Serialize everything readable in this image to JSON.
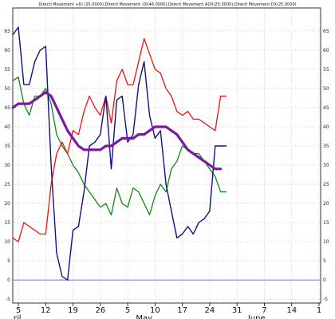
{
  "chart_data": {
    "type": "line",
    "title": "Directi Movement +Di (25.0000),Directi Movement -DI(46.0000),Directi Movement ADX(25.0000),Directi Movement DX(25.0000)",
    "xlabel": "",
    "ylabel": "",
    "ylim": [
      -6,
      71
    ],
    "yticks": [
      65,
      60,
      55,
      50,
      45,
      40,
      35,
      30,
      25,
      20,
      15,
      10,
      5,
      0,
      -5
    ],
    "ytick_labels": [
      "65",
      "60",
      "55",
      "50",
      "45",
      "40",
      "35",
      "30",
      "25",
      "20",
      "15",
      "10",
      "5",
      "0",
      "-5"
    ],
    "xlim": [
      0,
      55
    ],
    "xticks": [
      {
        "x": 0,
        "label": "5"
      },
      {
        "x": 5,
        "label": "12"
      },
      {
        "x": 10,
        "label": "19"
      },
      {
        "x": 15,
        "label": "26"
      },
      {
        "x": 20,
        "label": "5"
      },
      {
        "x": 25,
        "label": "10"
      },
      {
        "x": 30,
        "label": "17"
      },
      {
        "x": 35,
        "label": "24"
      },
      {
        "x": 40,
        "label": "31"
      },
      {
        "x": 45,
        "label": "7"
      },
      {
        "x": 50,
        "label": "14"
      },
      {
        "x": 55,
        "label": "1"
      }
    ],
    "month_labels": [
      {
        "x": -0.9,
        "label": "ril"
      },
      {
        "x": 21.5,
        "label": "May"
      },
      {
        "x": 42,
        "label": "June"
      }
    ],
    "hline": 0,
    "grid": true,
    "colors": {
      "plus_di": "#ee1111",
      "minus_di": "#118811",
      "dx": "#101088",
      "adx": "#7a1aa0",
      "zero_line": "#6f6fff",
      "grid": "#bbbbbb"
    },
    "series": [
      {
        "key": "plus_di",
        "x": [
          -1,
          0,
          1,
          2,
          3,
          4,
          5,
          6,
          7,
          8,
          9,
          10,
          11,
          12,
          13,
          14,
          15,
          16,
          17,
          18,
          19,
          20,
          21,
          22,
          23,
          24,
          25,
          26,
          27,
          28,
          29,
          30,
          31,
          32,
          33,
          34,
          35,
          36,
          37,
          38
        ],
        "values": [
          11,
          10,
          15,
          14,
          13,
          12,
          12,
          25,
          33,
          36,
          33,
          39,
          38,
          44,
          48,
          45,
          43,
          48,
          41,
          52,
          55,
          51,
          51,
          57,
          63,
          59,
          55,
          54,
          50,
          48,
          44,
          43,
          44,
          42,
          42,
          41,
          40,
          39,
          48,
          48
        ]
      },
      {
        "key": "minus_di",
        "x": [
          -1,
          0,
          1,
          2,
          3,
          4,
          5,
          6,
          7,
          8,
          9,
          10,
          11,
          12,
          13,
          14,
          15,
          16,
          17,
          18,
          19,
          20,
          21,
          22,
          23,
          24,
          25,
          26,
          27,
          28,
          29,
          30,
          31,
          32,
          33,
          34,
          35,
          36,
          37,
          38
        ],
        "values": [
          52,
          53,
          46,
          43,
          48,
          48,
          50,
          46,
          38,
          35,
          33,
          30,
          28,
          25,
          23,
          21,
          19,
          20,
          17,
          24,
          20,
          19,
          24,
          23,
          20,
          17,
          22,
          25,
          23,
          29,
          31,
          35,
          34,
          33,
          33,
          31,
          29,
          27,
          23,
          23
        ]
      },
      {
        "key": "dx",
        "x": [
          -1,
          0,
          1,
          2,
          3,
          4,
          5,
          6,
          7,
          8,
          9,
          10,
          11,
          12,
          13,
          14,
          15,
          16,
          17,
          18,
          19,
          20,
          21,
          22,
          23,
          24,
          25,
          26,
          27,
          28,
          29,
          30,
          31,
          32,
          33,
          34,
          35,
          36,
          37,
          38
        ],
        "values": [
          64,
          66,
          51,
          51,
          57,
          60,
          61,
          30,
          7,
          1,
          0,
          13,
          14,
          23,
          35,
          36,
          38,
          48,
          29,
          47,
          48,
          36,
          38,
          51,
          57,
          43,
          37,
          39,
          25,
          18,
          11,
          12,
          14,
          12,
          15,
          16,
          18,
          35,
          35,
          35
        ]
      },
      {
        "key": "adx",
        "x": [
          -1,
          0,
          1,
          2,
          3,
          4,
          5,
          6,
          7,
          8,
          9,
          10,
          11,
          12,
          13,
          14,
          15,
          16,
          17,
          18,
          19,
          20,
          21,
          22,
          23,
          24,
          25,
          26,
          27,
          28,
          29,
          30,
          31,
          32,
          33,
          34,
          35,
          36,
          37
        ],
        "values": [
          45,
          46,
          46,
          46,
          47,
          48,
          49,
          48,
          45,
          42,
          39,
          37,
          35,
          34,
          34,
          34,
          34,
          35,
          35,
          36,
          37,
          37,
          37,
          38,
          38,
          39,
          40,
          40,
          40,
          39,
          38,
          36,
          34,
          33,
          32,
          31,
          30,
          29,
          29
        ]
      }
    ]
  }
}
